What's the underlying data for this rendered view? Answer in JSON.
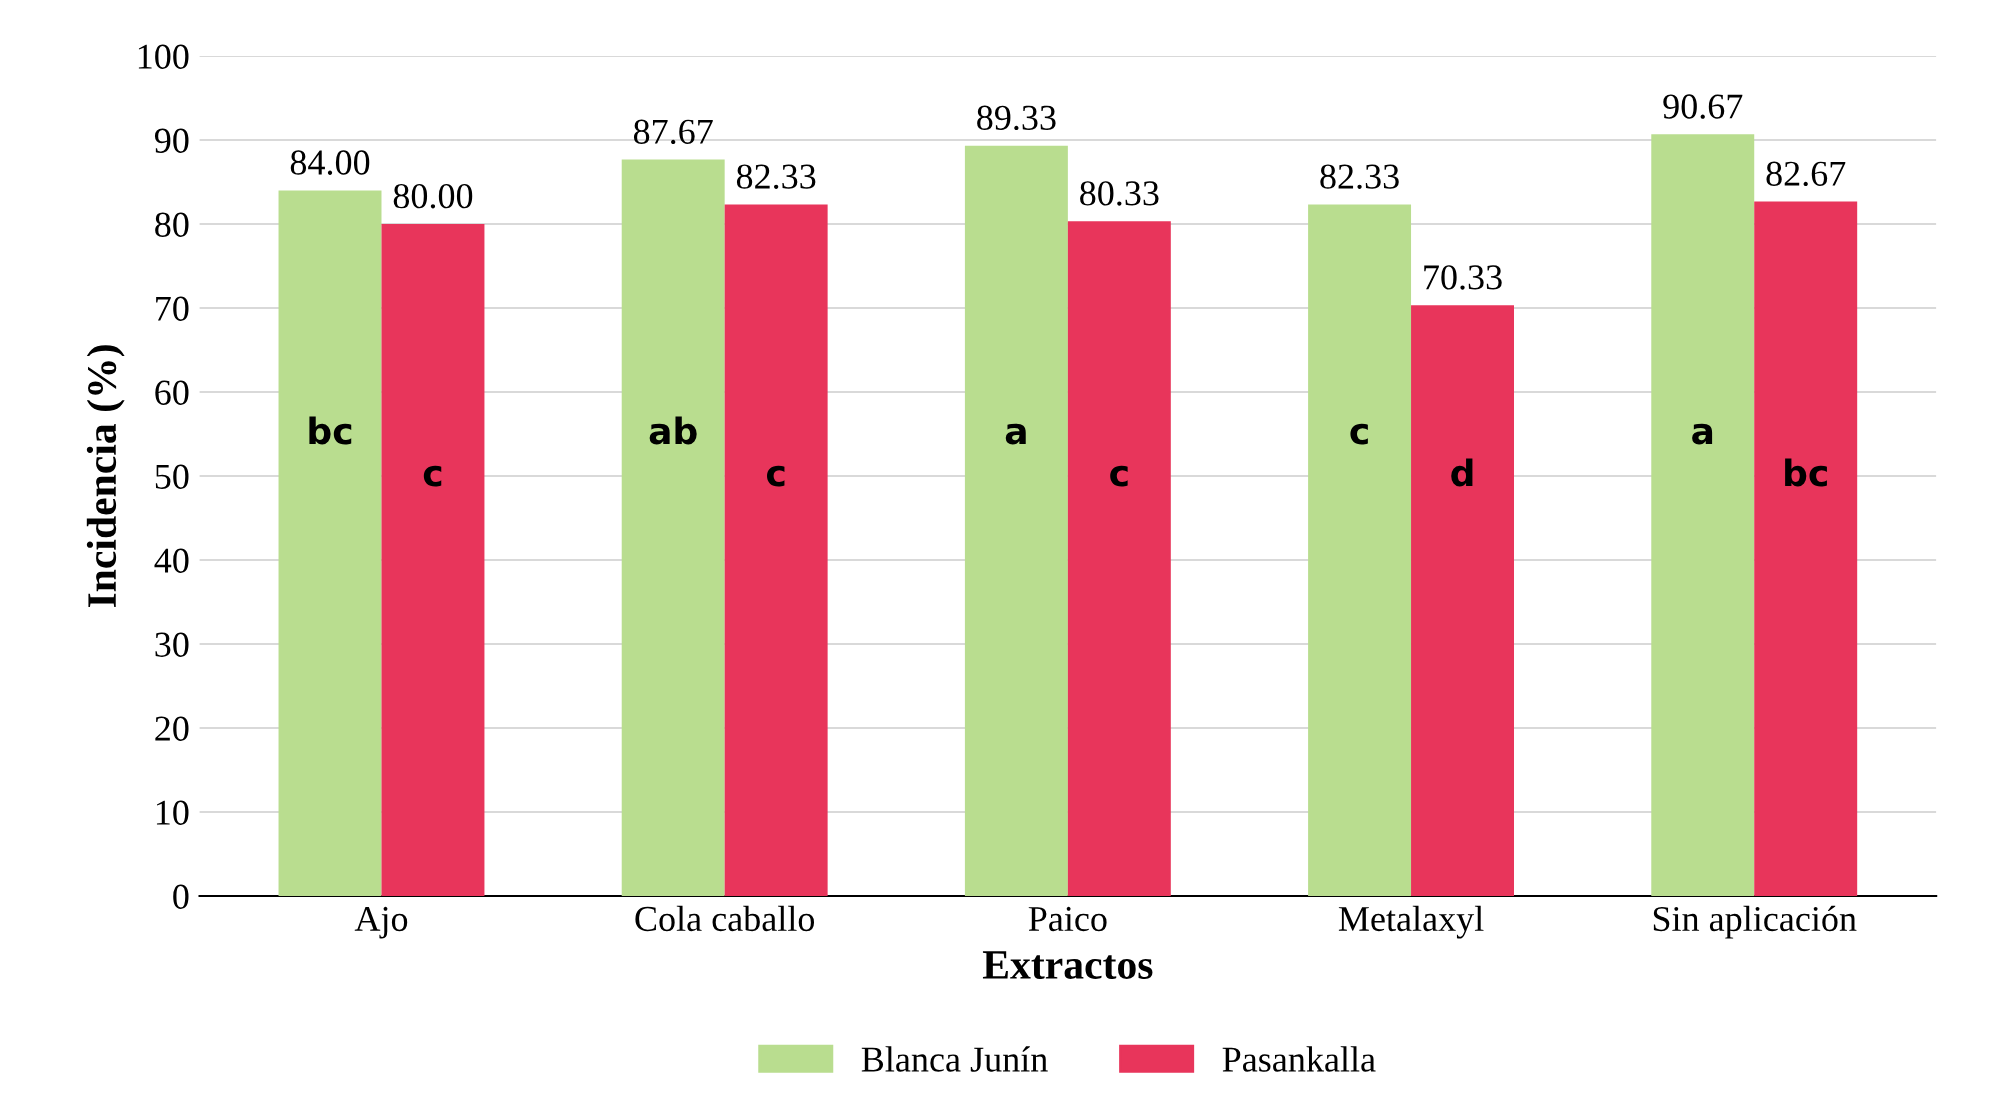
{
  "chart_data": {
    "type": "bar",
    "xlabel": "Extractos",
    "ylabel": "Incidencia (%)",
    "categories": [
      "Ajo",
      "Cola caballo",
      "Paico",
      "Metalaxyl",
      "Sin aplicación"
    ],
    "series": [
      {
        "name": "Blanca Junín",
        "color": "#b9dd8f",
        "values": [
          84.0,
          87.67,
          89.33,
          82.33,
          90.67
        ],
        "value_labels": [
          "84.00",
          "87.67",
          "89.33",
          "82.33",
          "90.67"
        ]
      },
      {
        "name": "Pasankalla",
        "color": "#e8355b",
        "values": [
          80.0,
          82.33,
          80.33,
          70.33,
          82.67
        ],
        "value_labels": [
          "80.00",
          "82.33",
          "80.33",
          "70.33",
          "82.67"
        ]
      }
    ],
    "annotations": [
      "bc",
      "c",
      "ab",
      "c",
      "a",
      "c",
      "c",
      "d",
      "a",
      "bc"
    ],
    "ylim": [
      0,
      100
    ],
    "yticks": [
      0,
      10,
      20,
      30,
      40,
      50,
      60,
      70,
      80,
      90,
      100
    ],
    "grid": "y",
    "legend": "bottom"
  }
}
